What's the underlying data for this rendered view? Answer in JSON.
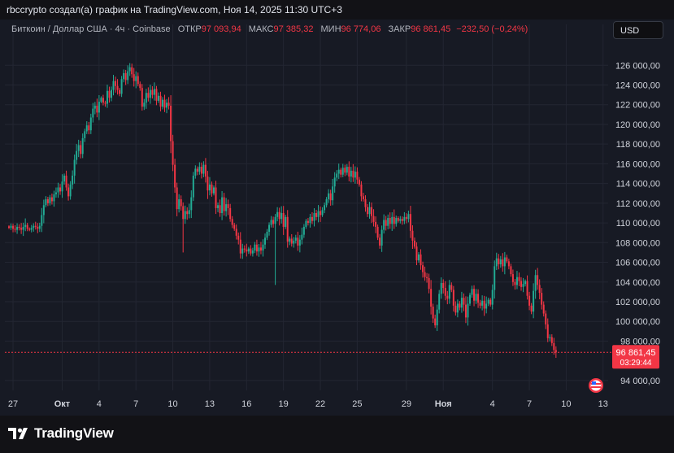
{
  "header": {
    "caption": "rbccrypto создал(а) график на TradingView.com, Ноя 14, 2025 11:30 UTC+3"
  },
  "legend": {
    "symbol": "Биткоин / Доллар США · 4ч · Coinbase",
    "open_label": "ОТКР",
    "open_value": "97 093,94",
    "high_label": "МАКС",
    "high_value": "97 385,32",
    "low_label": "МИН",
    "low_value": "96 774,06",
    "close_label": "ЗАКР",
    "close_value": "96 861,45",
    "change": "−232,50 (−0,24%)"
  },
  "toolbar": {
    "currency_label": "USD"
  },
  "price_badge": {
    "price": "96 861,45",
    "countdown": "03:29:44"
  },
  "footer": {
    "brand": "TradingView"
  },
  "colors": {
    "up": "#22ab94",
    "down": "#f23645",
    "background": "#171a24",
    "grid": "#232632",
    "axis_text": "#d1d4dc"
  },
  "chart_data": {
    "type": "candlestick",
    "interval": "4h",
    "y_axis": {
      "ticks": [
        94000,
        98000,
        100000,
        102000,
        104000,
        106000,
        108000,
        110000,
        112000,
        114000,
        116000,
        118000,
        120000,
        122000,
        124000,
        126000
      ],
      "tick_labels": [
        "94 000,00",
        "98 000,00",
        "100 000,00",
        "102 000,00",
        "104 000,00",
        "106 000,00",
        "108 000,00",
        "110 000,00",
        "112 000,00",
        "114 000,00",
        "116 000,00",
        "118 000,00",
        "120 000,00",
        "122 000,00",
        "124 000,00",
        "126 000,00"
      ],
      "range": [
        93000,
        128500
      ]
    },
    "x_axis": {
      "tick_labels": [
        "27",
        "Окт",
        "4",
        "7",
        "10",
        "13",
        "16",
        "19",
        "22",
        "25",
        "29",
        "Ноя",
        "4",
        "7",
        "10",
        "13"
      ],
      "bold": [
        false,
        true,
        false,
        false,
        false,
        false,
        false,
        false,
        false,
        false,
        false,
        true,
        false,
        false,
        false,
        false
      ],
      "tick_index": [
        0,
        24,
        42,
        60,
        78,
        96,
        114,
        132,
        150,
        168,
        192,
        210,
        234,
        252,
        270,
        288
      ]
    },
    "last_price": 96861.45,
    "closes": [
      109500,
      109700,
      109400,
      109300,
      109600,
      109500,
      109300,
      109600,
      109800,
      109400,
      109300,
      109500,
      109700,
      109600,
      109400,
      109700,
      110800,
      111800,
      112400,
      112000,
      112600,
      112200,
      112900,
      113100,
      113600,
      113200,
      114200,
      114800,
      113600,
      112700,
      113900,
      114800,
      116400,
      117300,
      117900,
      117000,
      118600,
      119300,
      119900,
      119400,
      120700,
      121600,
      121900,
      121200,
      122300,
      122700,
      122200,
      122100,
      123400,
      122700,
      123500,
      124400,
      123900,
      123500,
      123100,
      124600,
      125200,
      124500,
      125400,
      125800,
      125100,
      124400,
      124900,
      124100,
      123700,
      121800,
      122200,
      123200,
      122700,
      123500,
      123000,
      123600,
      122400,
      122900,
      121800,
      122500,
      121700,
      122200,
      121900,
      118300,
      115900,
      113600,
      111400,
      112400,
      111700,
      110400,
      111200,
      110900,
      111300,
      112600,
      114800,
      115500,
      115200,
      115700,
      115000,
      115900,
      114700,
      113300,
      113900,
      113000,
      113600,
      111500,
      111800,
      111000,
      112600,
      111200,
      111900,
      111500,
      110400,
      109800,
      109400,
      108700,
      108300,
      106900,
      107400,
      107300,
      107100,
      107400,
      106900,
      107200,
      107800,
      107100,
      107500,
      107200,
      107800,
      108500,
      109100,
      109800,
      110300,
      109900,
      110600,
      111100,
      110400,
      111000,
      109600,
      110600,
      108100,
      108400,
      107900,
      108200,
      108500,
      107700,
      108300,
      108800,
      109600,
      110200,
      110000,
      110600,
      110200,
      111000,
      110600,
      111200,
      110800,
      111300,
      111800,
      112400,
      113000,
      112300,
      113700,
      114600,
      115000,
      115400,
      114900,
      115600,
      115100,
      115700,
      114700,
      115300,
      114600,
      115200,
      114400,
      113900,
      112700,
      112400,
      111600,
      110900,
      111600,
      110700,
      110100,
      109600,
      108500,
      107700,
      109300,
      110300,
      109700,
      110500,
      109900,
      110600,
      109900,
      110500,
      110200,
      110400,
      110200,
      110600,
      110400,
      110900,
      109200,
      108200,
      107600,
      106200,
      106800,
      105700,
      105000,
      104500,
      104400,
      103300,
      101500,
      100300,
      99600,
      101200,
      102800,
      103900,
      103400,
      102600,
      102300,
      103700,
      103200,
      101600,
      100900,
      101800,
      101400,
      102400,
      101700,
      100400,
      101800,
      102700,
      103300,
      102100,
      102800,
      101900,
      101600,
      102100,
      101300,
      101800,
      102200,
      101700,
      103200,
      105600,
      106400,
      105800,
      106300,
      105600,
      106500,
      106100,
      105600,
      104800,
      104000,
      103700,
      104500,
      104100,
      103500,
      103800,
      104100,
      102600,
      101600,
      101000,
      103100,
      104700,
      103700,
      102900,
      101700,
      100800,
      99700,
      98300,
      98400,
      97800,
      97100,
      96861.45
    ]
  }
}
